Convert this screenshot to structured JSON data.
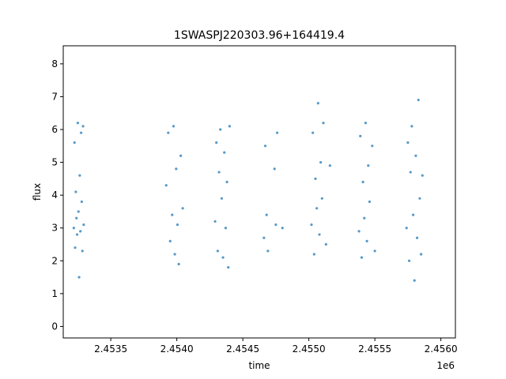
{
  "chart_data": {
    "type": "scatter",
    "title": "1SWASPJ220303.96+164419.4",
    "xlabel": "time",
    "ylabel": "flux",
    "x_offset_label": "1e6",
    "xlim": [
      2453140,
      2456110
    ],
    "ylim": [
      -0.35,
      8.55
    ],
    "x_ticks": [
      2453500,
      2454000,
      2454500,
      2455000,
      2455500,
      2456000
    ],
    "x_tick_labels": [
      "2.4535",
      "2.4540",
      "2.4545",
      "2.4550",
      "2.4555",
      "2.4560"
    ],
    "y_ticks": [
      0,
      1,
      2,
      3,
      4,
      5,
      6,
      7,
      8
    ],
    "y_tick_labels": [
      "0",
      "1",
      "2",
      "3",
      "4",
      "5",
      "6",
      "7",
      "8"
    ],
    "grid": false,
    "legend": "none",
    "marker_color": "#1f77b4",
    "series": [
      {
        "x": [
          2453220,
          2453225,
          2453230,
          2453235,
          2453240,
          2453245,
          2453250,
          2453255,
          2453260,
          2453265,
          2453270,
          2453275,
          2453280,
          2453285,
          2453290,
          2453295,
          2453920,
          2453935,
          2453950,
          2453965,
          2453975,
          2453985,
          2453995,
          2454005,
          2454015,
          2454030,
          2454045,
          2454290,
          2454300,
          2454310,
          2454320,
          2454330,
          2454340,
          2454350,
          2454360,
          2454370,
          2454380,
          2454390,
          2454400,
          2454660,
          2454670,
          2454680,
          2454690,
          2454740,
          2454750,
          2454760,
          2454800,
          2455020,
          2455030,
          2455040,
          2455050,
          2455060,
          2455070,
          2455080,
          2455090,
          2455100,
          2455110,
          2455130,
          2455160,
          2455380,
          2455390,
          2455400,
          2455410,
          2455420,
          2455430,
          2455440,
          2455450,
          2455460,
          2455480,
          2455500,
          2455740,
          2455750,
          2455760,
          2455770,
          2455780,
          2455790,
          2455800,
          2455810,
          2455820,
          2455830,
          2455840,
          2455850,
          2455860
        ],
        "y": [
          3.0,
          5.6,
          2.4,
          4.1,
          3.3,
          2.8,
          6.2,
          3.5,
          1.5,
          4.6,
          2.9,
          5.9,
          3.8,
          2.3,
          6.1,
          3.1,
          4.3,
          5.9,
          2.6,
          3.4,
          6.1,
          2.2,
          4.8,
          3.1,
          1.9,
          5.2,
          3.6,
          3.2,
          5.6,
          2.3,
          4.7,
          6.0,
          3.9,
          2.1,
          5.3,
          3.0,
          4.4,
          1.8,
          6.1,
          2.7,
          5.5,
          3.4,
          2.3,
          4.8,
          3.1,
          5.9,
          3.0,
          3.1,
          5.9,
          2.2,
          4.5,
          3.6,
          6.8,
          2.8,
          5.0,
          3.9,
          6.2,
          2.5,
          4.9,
          2.9,
          5.8,
          2.1,
          4.4,
          3.3,
          6.2,
          2.6,
          4.9,
          3.8,
          5.5,
          2.3,
          3.0,
          5.6,
          2.0,
          4.7,
          6.1,
          3.4,
          1.4,
          5.2,
          2.7,
          6.9,
          3.9,
          2.2,
          4.6
        ]
      }
    ]
  }
}
